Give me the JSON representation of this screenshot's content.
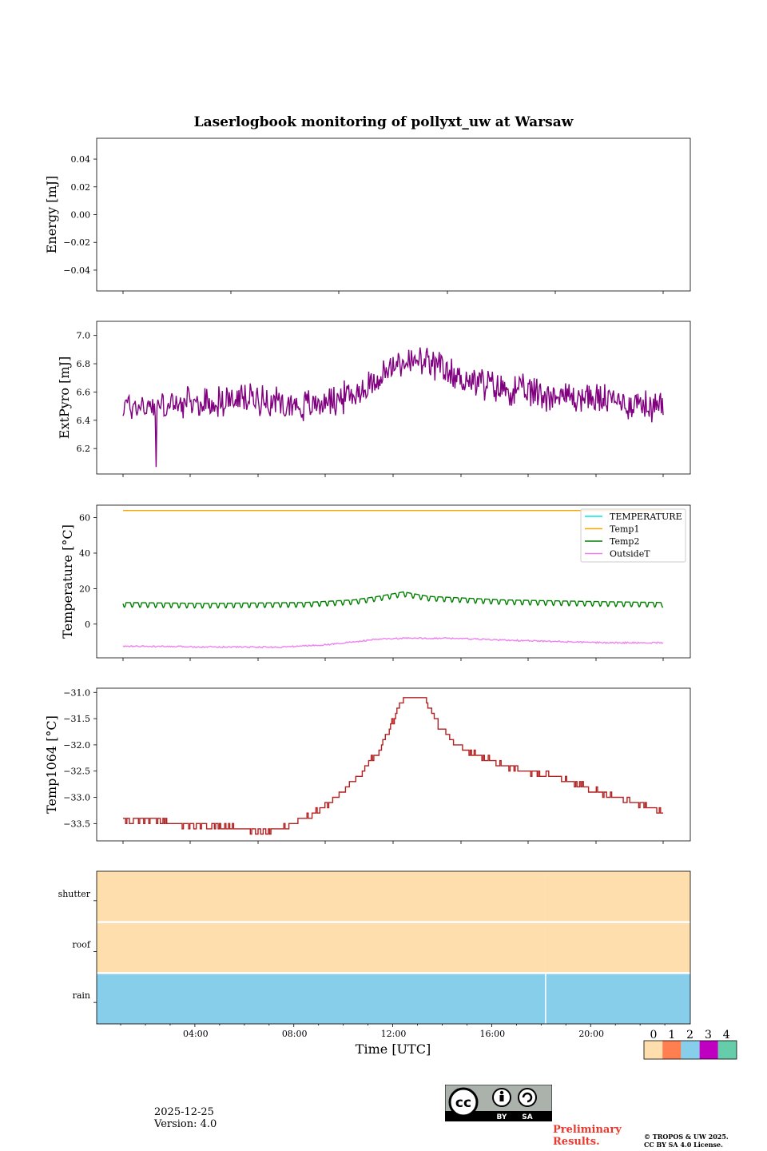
{
  "chart_data": [
    {
      "type": "line",
      "title": "Laserlogbook monitoring of pollyxt_uw at Warsaw",
      "ylabel": "Energy [mJ]",
      "ylim": [
        -0.055,
        0.055
      ],
      "yticks": [
        0.04,
        0.02,
        0.0,
        -0.02,
        -0.04
      ],
      "ytick_labels": [
        "0.04",
        "0.02",
        "0.00",
        "−0.02",
        "−0.04"
      ],
      "series": []
    },
    {
      "type": "line",
      "ylabel": "ExtPyro [mJ]",
      "ylim": [
        6.02,
        7.1
      ],
      "yticks": [
        7.0,
        6.8,
        6.6,
        6.4,
        6.2
      ],
      "ytick_labels": [
        "7.0",
        "6.8",
        "6.6",
        "6.4",
        "6.2"
      ],
      "series": [
        {
          "name": "ExtPyro",
          "color": "#800080",
          "x": [
            0.67,
            2,
            4,
            6,
            8,
            10,
            11,
            12,
            13,
            14,
            16,
            18,
            20,
            22,
            22.5
          ],
          "y": [
            6.5,
            6.5,
            6.52,
            6.56,
            6.5,
            6.58,
            6.7,
            6.82,
            6.8,
            6.72,
            6.62,
            6.58,
            6.55,
            6.5,
            6.48
          ],
          "noise": 0.09
        }
      ]
    },
    {
      "type": "line",
      "ylabel": "Temperature [°C]",
      "ylim": [
        -19,
        67
      ],
      "yticks": [
        60,
        40,
        20,
        0
      ],
      "ytick_labels": [
        "60",
        "40",
        "20",
        "0"
      ],
      "legend": [
        "TEMPERATURE",
        "Temp1",
        "Temp2",
        "OutsideT"
      ],
      "legend_position": "top-right",
      "series": [
        {
          "name": "TEMPERATURE",
          "color": "#00e5e5",
          "x": [],
          "y": []
        },
        {
          "name": "Temp1",
          "color": "#ffa500",
          "x": [
            0.67,
            22.5
          ],
          "y": [
            64,
            64
          ]
        },
        {
          "name": "Temp2",
          "color": "#008000",
          "x": [
            0.67,
            4,
            8,
            10,
            11,
            12,
            13,
            16,
            20,
            22.5
          ],
          "y": [
            11.5,
            11,
            11.5,
            13,
            15,
            17.5,
            15,
            13,
            12,
            11.5
          ],
          "oscillation": 2.0
        },
        {
          "name": "OutsideT",
          "color": "#ee82ee",
          "x": [
            0.67,
            4,
            7,
            9,
            11,
            12,
            14,
            16,
            20,
            22.5
          ],
          "y": [
            -12.5,
            -12.8,
            -13,
            -11.5,
            -8.5,
            -8,
            -8,
            -9,
            -10.5,
            -10.5
          ],
          "noise": 0.4
        }
      ]
    },
    {
      "type": "line",
      "ylabel": "Temp1064 [°C]",
      "ylim": [
        -33.83,
        -30.92
      ],
      "yticks": [
        -31.0,
        -31.5,
        -32.0,
        -32.5,
        -33.0,
        -33.5
      ],
      "ytick_labels": [
        "−31.0",
        "−31.5",
        "−32.0",
        "−32.5",
        "−33.0",
        "−33.5"
      ],
      "series": [
        {
          "name": "Temp1064",
          "color": "#b22222",
          "x": [
            0.67,
            2,
            3.5,
            5,
            6,
            7,
            8,
            9,
            10,
            11,
            11.5,
            12,
            12.8,
            13.5,
            14.5,
            16,
            18,
            20,
            22,
            22.5
          ],
          "y": [
            -33.45,
            -33.45,
            -33.55,
            -33.55,
            -33.65,
            -33.6,
            -33.4,
            -33.1,
            -32.7,
            -32.1,
            -31.6,
            -31.1,
            -31.1,
            -31.7,
            -32.1,
            -32.4,
            -32.6,
            -32.9,
            -33.2,
            -33.3
          ],
          "step": 0.1
        }
      ]
    },
    {
      "type": "heatmap",
      "xlabel": "Time [UTC]",
      "xlim": [
        0,
        24
      ],
      "xtick_labels": [
        "04:00",
        "08:00",
        "12:00",
        "16:00",
        "20:00"
      ],
      "rows": [
        "shutter",
        "roof",
        "rain"
      ],
      "values": [
        [
          0,
          0
        ],
        [
          0,
          0
        ],
        [
          2,
          2
        ]
      ],
      "row_segments_x": [
        0,
        18.15,
        24
      ],
      "colorbar_labels": [
        "0",
        "1",
        "2",
        "3",
        "4"
      ],
      "colorbar_colors": [
        "#ffdead",
        "#ff7f50",
        "#87ceeb",
        "#c000c0",
        "#66cdaa"
      ]
    }
  ],
  "footer": {
    "date": "2025-12-25",
    "version": "Version: 4.0",
    "preliminary": "Preliminary\nResults.",
    "copyright_line1": "© TROPOS & UW 2025.",
    "copyright_line2": "CC BY SA 4.0 License.",
    "cc_by": "BY",
    "cc_sa": "SA",
    "cc_main": "cc"
  }
}
